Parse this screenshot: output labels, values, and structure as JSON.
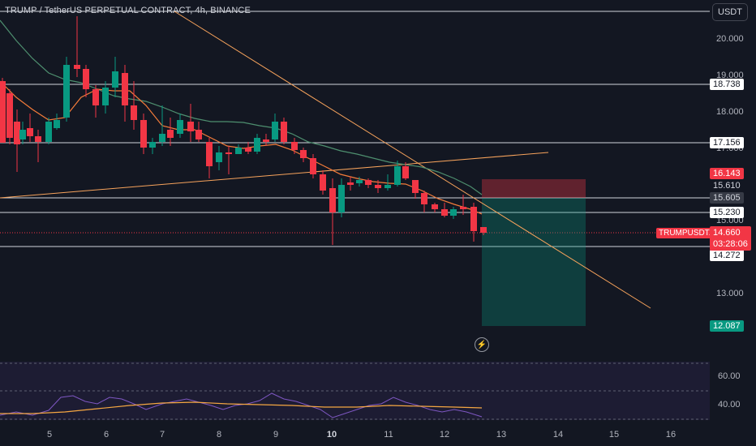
{
  "header": {
    "title": "TRUMP / TetherUS PERPETUAL CONTRACT, 4h, BINANCE"
  },
  "currency_button": "USDT",
  "symbol_label": "TRUMPUSDT.P",
  "price_axis_ticks": [
    "20.000",
    "19.000",
    "18.000",
    "17.000",
    "15.000",
    "13.000"
  ],
  "rsi_axis_ticks": [
    "60.00",
    "40.00"
  ],
  "time_axis_ticks": [
    {
      "label": "5",
      "bold": false
    },
    {
      "label": "6",
      "bold": false
    },
    {
      "label": "7",
      "bold": false
    },
    {
      "label": "8",
      "bold": false
    },
    {
      "label": "9",
      "bold": false
    },
    {
      "label": "10",
      "bold": true
    },
    {
      "label": "11",
      "bold": false
    },
    {
      "label": "12",
      "bold": false
    },
    {
      "label": "13",
      "bold": false
    },
    {
      "label": "14",
      "bold": false
    },
    {
      "label": "15",
      "bold": false
    },
    {
      "label": "16",
      "bold": false
    }
  ],
  "level_tags": {
    "l18738": "18.738",
    "l17156": "17.156",
    "l16143": "16.143",
    "l15610": "15.610",
    "l15605": "15.605",
    "l15230": "15.230",
    "l14272": "14.272",
    "l12087": "12.087"
  },
  "current_price": "14.660",
  "countdown": "03:28:06",
  "colors": {
    "background": "#131722",
    "up": "#089981",
    "down": "#f23645",
    "ema_fast": "#f57c3a",
    "ema_slow": "#4e8f6f",
    "trendline": "#f7a35c",
    "rsi_line": "#7e57c2",
    "rsi_ma": "#f5a742"
  },
  "icons": {
    "flash": "lightning-icon"
  }
}
